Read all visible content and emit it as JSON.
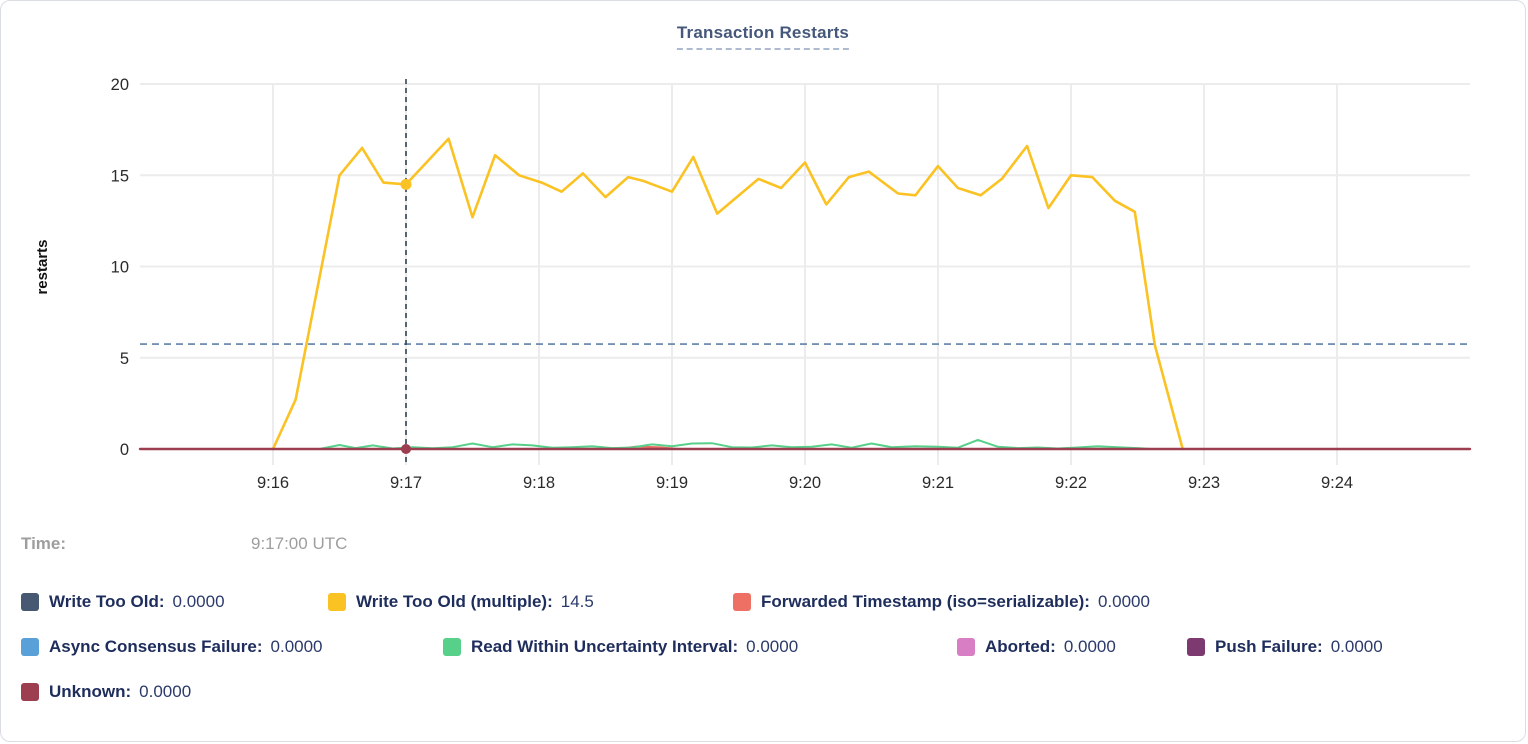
{
  "panel": {
    "title": "Transaction Restarts"
  },
  "tooltip": {
    "time_label": "Time:",
    "time_value": "9:17:00 UTC"
  },
  "legend": {
    "items": [
      {
        "label": "Write Too Old:",
        "value": "0.0000",
        "color": "#475872"
      },
      {
        "label": "Write Too Old (multiple):",
        "value": "14.5",
        "color": "#FBC223"
      },
      {
        "label": "Forwarded Timestamp (iso=serializable):",
        "value": "0.0000",
        "color": "#EE6F63"
      },
      {
        "label": "Async Consensus Failure:",
        "value": "0.0000",
        "color": "#58A0D7"
      },
      {
        "label": "Read Within Uncertainty Interval:",
        "value": "0.0000",
        "color": "#57D08A"
      },
      {
        "label": "Aborted:",
        "value": "0.0000",
        "color": "#D77EC4"
      },
      {
        "label": "Push Failure:",
        "value": "0.0000",
        "color": "#7D3A70"
      },
      {
        "label": "Unknown:",
        "value": "0.0000",
        "color": "#9C3D50"
      }
    ]
  },
  "chart_data": {
    "type": "line",
    "title": "Transaction Restarts",
    "ylabel": "restarts",
    "xlabel": "",
    "ylim": [
      0,
      20
    ],
    "xlim": [
      0,
      10
    ],
    "grid": true,
    "yticks": [
      0,
      5,
      10,
      15,
      20
    ],
    "xticks": [
      {
        "t": 1,
        "label": "9:16"
      },
      {
        "t": 2,
        "label": "9:17"
      },
      {
        "t": 3,
        "label": "9:18"
      },
      {
        "t": 4,
        "label": "9:19"
      },
      {
        "t": 5,
        "label": "9:20"
      },
      {
        "t": 6,
        "label": "9:21"
      },
      {
        "t": 7,
        "label": "9:22"
      },
      {
        "t": 8,
        "label": "9:23"
      },
      {
        "t": 9,
        "label": "9:24"
      }
    ],
    "x_unit": "minutes after 9:15 UTC",
    "hover": {
      "t": 2,
      "time": "9:17:00 UTC",
      "line_value": 5.75,
      "points": [
        {
          "v": 14.5,
          "color": "#FBC223",
          "r": 5.5
        },
        {
          "v": 0,
          "color": "#9C3D50",
          "r": 5
        }
      ]
    },
    "series": [
      {
        "name": "Write Too Old",
        "color": "#475872",
        "width": 2,
        "points": [
          [
            1,
            0
          ],
          [
            7.84,
            0
          ]
        ]
      },
      {
        "name": "Write Too Old (multiple)",
        "color": "#FBC223",
        "width": 2.6,
        "points": [
          [
            1.0,
            0
          ],
          [
            1.17,
            2.7
          ],
          [
            1.5,
            15.0
          ],
          [
            1.67,
            16.5
          ],
          [
            1.83,
            14.6
          ],
          [
            2.0,
            14.5
          ],
          [
            2.32,
            17.0
          ],
          [
            2.5,
            12.7
          ],
          [
            2.67,
            16.1
          ],
          [
            2.85,
            15.0
          ],
          [
            3.02,
            14.6
          ],
          [
            3.17,
            14.1
          ],
          [
            3.33,
            15.1
          ],
          [
            3.5,
            13.8
          ],
          [
            3.67,
            14.9
          ],
          [
            3.78,
            14.7
          ],
          [
            4.0,
            14.1
          ],
          [
            4.16,
            16.0
          ],
          [
            4.34,
            12.9
          ],
          [
            4.65,
            14.8
          ],
          [
            4.82,
            14.3
          ],
          [
            5.0,
            15.7
          ],
          [
            5.16,
            13.4
          ],
          [
            5.33,
            14.9
          ],
          [
            5.48,
            15.2
          ],
          [
            5.7,
            14.0
          ],
          [
            5.83,
            13.9
          ],
          [
            6.0,
            15.5
          ],
          [
            6.15,
            14.3
          ],
          [
            6.32,
            13.9
          ],
          [
            6.48,
            14.8
          ],
          [
            6.67,
            16.6
          ],
          [
            6.83,
            13.2
          ],
          [
            7.0,
            15.0
          ],
          [
            7.16,
            14.9
          ],
          [
            7.33,
            13.6
          ],
          [
            7.48,
            13.0
          ],
          [
            7.63,
            5.7
          ],
          [
            7.84,
            0
          ]
        ]
      },
      {
        "name": "Forwarded Timestamp (iso=serializable)",
        "color": "#EE6F63",
        "width": 2,
        "points": [
          [
            1.0,
            0
          ],
          [
            3.6,
            0
          ],
          [
            3.73,
            0.13
          ],
          [
            3.9,
            0.1
          ],
          [
            4.05,
            0
          ],
          [
            7.84,
            0
          ]
        ]
      },
      {
        "name": "Async Consensus Failure",
        "color": "#58A0D7",
        "width": 2,
        "points": [
          [
            1,
            0
          ],
          [
            7.84,
            0
          ]
        ]
      },
      {
        "name": "Read Within Uncertainty Interval",
        "color": "#57D08A",
        "width": 2,
        "points": [
          [
            1.35,
            0
          ],
          [
            1.5,
            0.22
          ],
          [
            1.62,
            0.05
          ],
          [
            1.75,
            0.2
          ],
          [
            1.9,
            0.03
          ],
          [
            2.05,
            0.1
          ],
          [
            2.2,
            0.04
          ],
          [
            2.35,
            0.1
          ],
          [
            2.5,
            0.3
          ],
          [
            2.65,
            0.1
          ],
          [
            2.8,
            0.25
          ],
          [
            2.95,
            0.2
          ],
          [
            3.1,
            0.07
          ],
          [
            3.25,
            0.1
          ],
          [
            3.4,
            0.15
          ],
          [
            3.55,
            0.05
          ],
          [
            3.7,
            0.08
          ],
          [
            3.85,
            0.25
          ],
          [
            4.0,
            0.15
          ],
          [
            4.15,
            0.3
          ],
          [
            4.3,
            0.32
          ],
          [
            4.45,
            0.1
          ],
          [
            4.6,
            0.08
          ],
          [
            4.75,
            0.2
          ],
          [
            4.9,
            0.1
          ],
          [
            5.05,
            0.12
          ],
          [
            5.2,
            0.25
          ],
          [
            5.35,
            0.07
          ],
          [
            5.5,
            0.3
          ],
          [
            5.65,
            0.1
          ],
          [
            5.83,
            0.15
          ],
          [
            6.0,
            0.12
          ],
          [
            6.15,
            0.07
          ],
          [
            6.3,
            0.5
          ],
          [
            6.45,
            0.12
          ],
          [
            6.6,
            0.05
          ],
          [
            6.75,
            0.08
          ],
          [
            6.9,
            0.03
          ],
          [
            7.05,
            0.08
          ],
          [
            7.2,
            0.15
          ],
          [
            7.35,
            0.1
          ],
          [
            7.5,
            0.05
          ],
          [
            7.6,
            0
          ]
        ]
      },
      {
        "name": "Aborted",
        "color": "#D77EC4",
        "width": 2,
        "points": [
          [
            1,
            0
          ],
          [
            7.84,
            0
          ]
        ]
      },
      {
        "name": "Push Failure",
        "color": "#7D3A70",
        "width": 2,
        "points": [
          [
            1,
            0
          ],
          [
            7.84,
            0
          ]
        ]
      },
      {
        "name": "Unknown",
        "color": "#9C3D50",
        "width": 2.4,
        "points": [
          [
            0,
            0
          ],
          [
            10,
            0
          ]
        ]
      }
    ]
  }
}
